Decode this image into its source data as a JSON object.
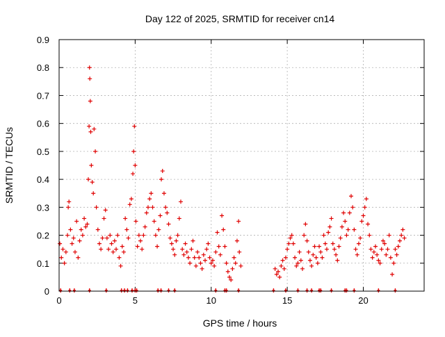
{
  "chart_data": {
    "type": "scatter",
    "title": "Day 122 of 2025, SRMTID for receiver cn14",
    "xlabel": "GPS time / hours",
    "ylabel": "SRMTID / TECUs",
    "xlim": [
      0,
      24
    ],
    "ylim": [
      0,
      0.9
    ],
    "grid": true,
    "marker": "+",
    "marker_color": "#e00000",
    "x_ticks": [
      0,
      5,
      10,
      15,
      20
    ],
    "y_ticks": [
      0,
      0.1,
      0.2,
      0.3,
      0.4,
      0.5,
      0.6,
      0.7,
      0.8,
      0.9
    ],
    "x_tick_labels": [
      "0",
      "5",
      "10",
      "15",
      "20"
    ],
    "y_tick_labels": [
      "0",
      "0.1",
      "0.2",
      "0.3",
      "0.4",
      "0.5",
      "0.6",
      "0.7",
      "0.8",
      "0.9"
    ],
    "series": [
      {
        "name": "SRMTID",
        "points": [
          [
            0.05,
            0.17
          ],
          [
            0.15,
            0.12
          ],
          [
            0.25,
            0.15
          ],
          [
            0.35,
            0.1
          ],
          [
            0.45,
            0.14
          ],
          [
            0.55,
            0.2
          ],
          [
            0.6,
            0.3
          ],
          [
            0.65,
            0.32
          ],
          [
            0.75,
            0.22
          ],
          [
            0.85,
            0.17
          ],
          [
            0.95,
            0.19
          ],
          [
            1.05,
            0.14
          ],
          [
            1.15,
            0.25
          ],
          [
            1.25,
            0.12
          ],
          [
            1.35,
            0.18
          ],
          [
            1.45,
            0.22
          ],
          [
            1.55,
            0.2
          ],
          [
            1.65,
            0.26
          ],
          [
            1.75,
            0.23
          ],
          [
            1.85,
            0.24
          ],
          [
            1.92,
            0.4
          ],
          [
            1.97,
            0.59
          ],
          [
            2.0,
            0.8
          ],
          [
            2.02,
            0.76
          ],
          [
            2.05,
            0.68
          ],
          [
            2.08,
            0.57
          ],
          [
            2.12,
            0.45
          ],
          [
            2.18,
            0.39
          ],
          [
            2.25,
            0.35
          ],
          [
            2.3,
            0.58
          ],
          [
            2.38,
            0.5
          ],
          [
            2.45,
            0.3
          ],
          [
            2.55,
            0.22
          ],
          [
            2.65,
            0.17
          ],
          [
            2.75,
            0.15
          ],
          [
            2.85,
            0.19
          ],
          [
            2.95,
            0.26
          ],
          [
            3.05,
            0.29
          ],
          [
            3.15,
            0.19
          ],
          [
            3.25,
            0.15
          ],
          [
            3.35,
            0.2
          ],
          [
            3.45,
            0.17
          ],
          [
            3.55,
            0.14
          ],
          [
            3.65,
            0.18
          ],
          [
            3.75,
            0.15
          ],
          [
            3.85,
            0.2
          ],
          [
            3.95,
            0.12
          ],
          [
            4.05,
            0.09
          ],
          [
            4.15,
            0.16
          ],
          [
            4.25,
            0.14
          ],
          [
            4.35,
            0.26
          ],
          [
            4.45,
            0.22
          ],
          [
            4.55,
            0.19
          ],
          [
            4.65,
            0.31
          ],
          [
            4.75,
            0.33
          ],
          [
            4.85,
            0.42
          ],
          [
            4.9,
            0.5
          ],
          [
            4.95,
            0.59
          ],
          [
            5.0,
            0.45
          ],
          [
            5.05,
            0.25
          ],
          [
            5.15,
            0.16
          ],
          [
            5.25,
            0.2
          ],
          [
            5.35,
            0.18
          ],
          [
            5.45,
            0.15
          ],
          [
            5.55,
            0.2
          ],
          [
            5.65,
            0.23
          ],
          [
            5.75,
            0.28
          ],
          [
            5.85,
            0.3
          ],
          [
            5.95,
            0.33
          ],
          [
            6.05,
            0.35
          ],
          [
            6.15,
            0.3
          ],
          [
            6.25,
            0.25
          ],
          [
            6.35,
            0.2
          ],
          [
            6.45,
            0.16
          ],
          [
            6.55,
            0.22
          ],
          [
            6.65,
            0.27
          ],
          [
            6.72,
            0.4
          ],
          [
            6.8,
            0.43
          ],
          [
            6.9,
            0.35
          ],
          [
            7.0,
            0.3
          ],
          [
            7.1,
            0.28
          ],
          [
            7.2,
            0.24
          ],
          [
            7.3,
            0.19
          ],
          [
            7.4,
            0.17
          ],
          [
            7.5,
            0.15
          ],
          [
            7.6,
            0.13
          ],
          [
            7.7,
            0.18
          ],
          [
            7.8,
            0.2
          ],
          [
            7.9,
            0.26
          ],
          [
            8.0,
            0.32
          ],
          [
            8.1,
            0.15
          ],
          [
            8.2,
            0.13
          ],
          [
            8.3,
            0.17
          ],
          [
            8.4,
            0.14
          ],
          [
            8.5,
            0.12
          ],
          [
            8.6,
            0.1
          ],
          [
            8.7,
            0.15
          ],
          [
            8.8,
            0.18
          ],
          [
            8.9,
            0.12
          ],
          [
            9.0,
            0.09
          ],
          [
            9.1,
            0.14
          ],
          [
            9.2,
            0.12
          ],
          [
            9.3,
            0.1
          ],
          [
            9.4,
            0.08
          ],
          [
            9.5,
            0.13
          ],
          [
            9.6,
            0.11
          ],
          [
            9.7,
            0.15
          ],
          [
            9.8,
            0.17
          ],
          [
            9.9,
            0.12
          ],
          [
            10.0,
            0.1
          ],
          [
            10.1,
            0.11
          ],
          [
            10.2,
            0.09
          ],
          [
            10.3,
            0.14
          ],
          [
            10.4,
            0.21
          ],
          [
            10.5,
            0.16
          ],
          [
            10.6,
            0.13
          ],
          [
            10.7,
            0.27
          ],
          [
            10.8,
            0.22
          ],
          [
            10.9,
            0.16
          ],
          [
            11.0,
            0.1
          ],
          [
            11.1,
            0.07
          ],
          [
            11.2,
            0.05
          ],
          [
            11.3,
            0.04
          ],
          [
            11.4,
            0.08
          ],
          [
            11.5,
            0.12
          ],
          [
            11.6,
            0.1
          ],
          [
            11.7,
            0.18
          ],
          [
            11.8,
            0.25
          ],
          [
            11.85,
            0.14
          ],
          [
            11.95,
            0.09
          ],
          [
            14.2,
            0.08
          ],
          [
            14.3,
            0.06
          ],
          [
            14.4,
            0.07
          ],
          [
            14.5,
            0.05
          ],
          [
            14.6,
            0.09
          ],
          [
            14.7,
            0.11
          ],
          [
            14.8,
            0.08
          ],
          [
            14.9,
            0.12
          ],
          [
            15.0,
            0.15
          ],
          [
            15.1,
            0.17
          ],
          [
            15.2,
            0.19
          ],
          [
            15.3,
            0.2
          ],
          [
            15.4,
            0.17
          ],
          [
            15.5,
            0.12
          ],
          [
            15.6,
            0.09
          ],
          [
            15.7,
            0.1
          ],
          [
            15.8,
            0.14
          ],
          [
            15.9,
            0.11
          ],
          [
            16.0,
            0.08
          ],
          [
            16.1,
            0.2
          ],
          [
            16.2,
            0.24
          ],
          [
            16.3,
            0.18
          ],
          [
            16.4,
            0.14
          ],
          [
            16.5,
            0.11
          ],
          [
            16.6,
            0.09
          ],
          [
            16.7,
            0.13
          ],
          [
            16.8,
            0.16
          ],
          [
            16.9,
            0.12
          ],
          [
            17.0,
            0.1
          ],
          [
            17.1,
            0.16
          ],
          [
            17.2,
            0.14
          ],
          [
            17.3,
            0.12
          ],
          [
            17.4,
            0.2
          ],
          [
            17.5,
            0.17
          ],
          [
            17.6,
            0.15
          ],
          [
            17.7,
            0.21
          ],
          [
            17.8,
            0.23
          ],
          [
            17.9,
            0.26
          ],
          [
            18.0,
            0.17
          ],
          [
            18.1,
            0.15
          ],
          [
            18.2,
            0.13
          ],
          [
            18.3,
            0.11
          ],
          [
            18.4,
            0.16
          ],
          [
            18.5,
            0.19
          ],
          [
            18.6,
            0.23
          ],
          [
            18.7,
            0.28
          ],
          [
            18.8,
            0.25
          ],
          [
            18.9,
            0.2
          ],
          [
            19.0,
            0.22
          ],
          [
            19.1,
            0.28
          ],
          [
            19.2,
            0.34
          ],
          [
            19.3,
            0.3
          ],
          [
            19.4,
            0.22
          ],
          [
            19.5,
            0.15
          ],
          [
            19.6,
            0.13
          ],
          [
            19.7,
            0.17
          ],
          [
            19.8,
            0.19
          ],
          [
            19.9,
            0.25
          ],
          [
            20.0,
            0.27
          ],
          [
            20.1,
            0.3
          ],
          [
            20.2,
            0.33
          ],
          [
            20.3,
            0.24
          ],
          [
            20.4,
            0.2
          ],
          [
            20.5,
            0.15
          ],
          [
            20.6,
            0.12
          ],
          [
            20.7,
            0.14
          ],
          [
            20.8,
            0.16
          ],
          [
            20.9,
            0.13
          ],
          [
            21.0,
            0.11
          ],
          [
            21.1,
            0.1
          ],
          [
            21.2,
            0.15
          ],
          [
            21.3,
            0.18
          ],
          [
            21.4,
            0.17
          ],
          [
            21.5,
            0.13
          ],
          [
            21.6,
            0.15
          ],
          [
            21.7,
            0.2
          ],
          [
            21.8,
            0.12
          ],
          [
            21.9,
            0.06
          ],
          [
            22.0,
            0.1
          ],
          [
            22.1,
            0.15
          ],
          [
            22.2,
            0.13
          ],
          [
            22.3,
            0.16
          ],
          [
            22.4,
            0.18
          ],
          [
            22.5,
            0.2
          ],
          [
            22.6,
            0.22
          ],
          [
            22.7,
            0.19
          ]
        ]
      }
    ],
    "zero_markers": [
      0.1,
      0.7,
      1.0,
      2.0,
      3.1,
      4.1,
      4.3,
      4.5,
      4.8,
      5.0,
      5.1,
      6.5,
      6.7,
      7.2,
      7.6,
      10.3,
      10.9,
      11.0,
      11.8,
      14.1,
      14.9,
      15.7,
      16.3,
      16.6,
      17.1,
      17.2,
      17.9,
      18.8,
      18.9,
      19.4,
      21.0,
      22.1
    ]
  }
}
